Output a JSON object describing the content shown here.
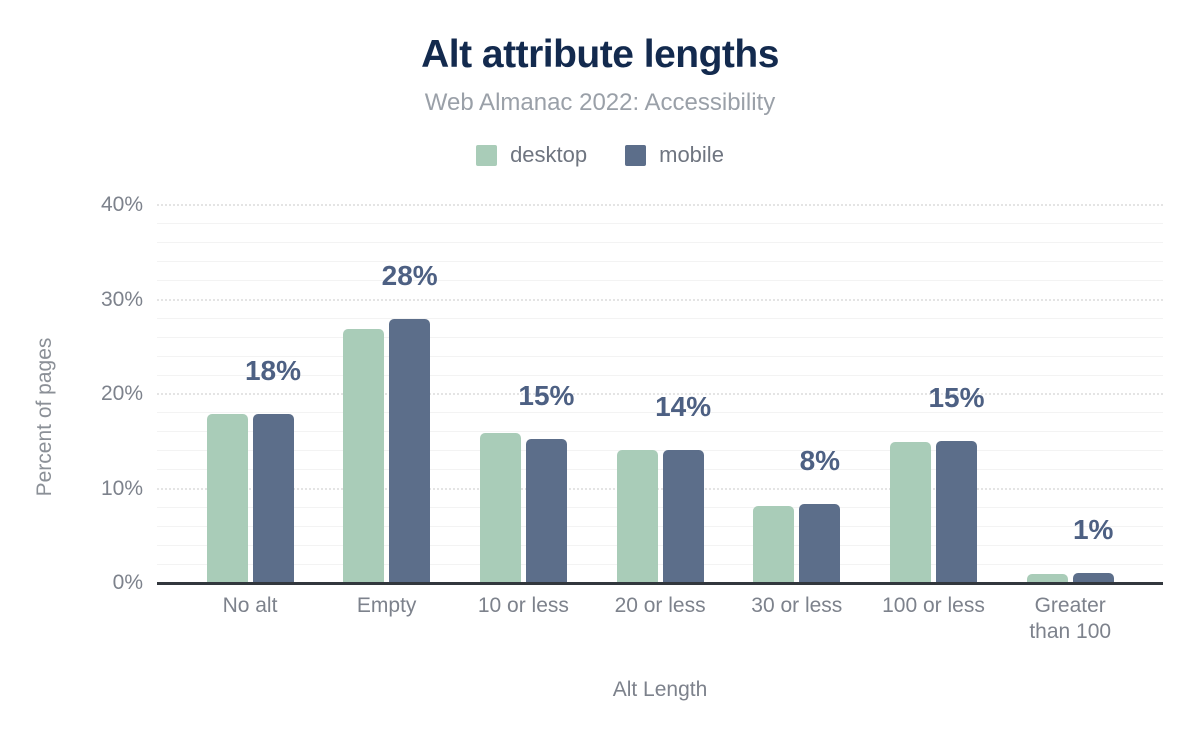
{
  "title": "Alt attribute lengths",
  "subtitle": "Web Almanac 2022: Accessibility",
  "legend": {
    "items": [
      {
        "label": "desktop",
        "color": "#a9ccb8"
      },
      {
        "label": "mobile",
        "color": "#5c6e8a"
      }
    ]
  },
  "colors": {
    "desktop": "#a9ccb8",
    "mobile": "#5c6e8a",
    "title": "#132a4e",
    "subtitle_text": "#9aa0a8",
    "data_label": "#4d6083",
    "axis_text": "#7d828c",
    "axis_line": "#32373d",
    "gridline_major": "#e4e4e4",
    "gridline_minor": "#f3f3f3"
  },
  "chart_data": {
    "type": "bar",
    "title": "Alt attribute lengths",
    "subtitle": "Web Almanac 2022: Accessibility",
    "xlabel": "Alt Length",
    "ylabel": "Percent of pages",
    "categories": [
      "No alt",
      "Empty",
      "10 or less",
      "20 or less",
      "30 or less",
      "100 or less",
      "Greater than 100"
    ],
    "xtick_labels": [
      "No alt",
      "Empty",
      "10 or less",
      "20 or less",
      "30 or less",
      "100 or less",
      "Greater\nthan 100"
    ],
    "series": [
      {
        "name": "desktop",
        "color": "#a9ccb8",
        "values": [
          17.9,
          26.9,
          15.9,
          14.1,
          8.2,
          14.9,
          1.0
        ]
      },
      {
        "name": "mobile",
        "color": "#5c6e8a",
        "values": [
          17.9,
          27.9,
          15.2,
          14.1,
          8.4,
          15.0,
          1.1
        ]
      }
    ],
    "data_labels": [
      "18%",
      "28%",
      "15%",
      "14%",
      "8%",
      "15%",
      "1%"
    ],
    "ylim": [
      0,
      40
    ],
    "yticks": [
      0,
      10,
      20,
      30,
      40
    ],
    "ytick_labels": [
      "0%",
      "10%",
      "20%",
      "30%",
      "40%"
    ],
    "grid": {
      "major_step": 10,
      "minor_step": 2,
      "majors_dotted": true
    },
    "legend_position": "top"
  }
}
